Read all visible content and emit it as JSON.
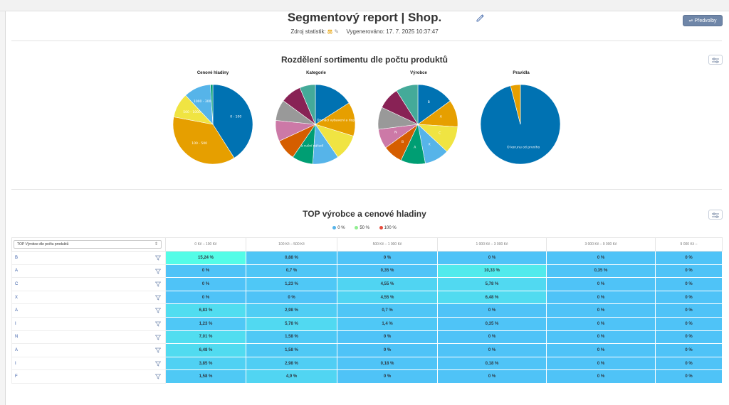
{
  "header": {
    "title": "Segmentový report | Shop.",
    "source_label": "Zdroj statistik:",
    "generated": "Vygenerováno: 17. 7. 2025 10:37:47",
    "preset_button": "Předvolby",
    "preset_icon": "sliders-icon",
    "edit_icon": "pencil-icon"
  },
  "assortment": {
    "title": "Rozdělení sortimentu dle počtu produktů",
    "pies": [
      {
        "title": "Cenové hladiny",
        "slices": [
          {
            "label": "0 - 100",
            "value": 41,
            "color": "#0072b2"
          },
          {
            "label": "100 - 500",
            "value": 37,
            "color": "#e69f00"
          },
          {
            "label": "500 - 1000",
            "value": 10,
            "color": "#f0e442"
          },
          {
            "label": "1000 - 3000",
            "value": 11,
            "color": "#56b4e9"
          },
          {
            "label": "",
            "value": 1,
            "color": "#009e73"
          }
        ]
      },
      {
        "title": "Kategorie",
        "slices": [
          {
            "label": "",
            "value": 15,
            "color": "#0072b2"
          },
          {
            "label": "Domácí vybavení a doplňky",
            "value": 13,
            "color": "#e69f00"
          },
          {
            "label": "",
            "value": 10,
            "color": "#f0e442"
          },
          {
            "label": "",
            "value": 10,
            "color": "#56b4e9"
          },
          {
            "label": "Dílna a ruční nářadí",
            "value": 8,
            "color": "#009e73"
          },
          {
            "label": "",
            "value": 8,
            "color": "#d55e00"
          },
          {
            "label": "",
            "value": 8,
            "color": "#cc79a7"
          },
          {
            "label": "",
            "value": 8,
            "color": "#999999"
          },
          {
            "label": "",
            "value": 8,
            "color": "#882255"
          },
          {
            "label": "",
            "value": 6,
            "color": "#44aa99"
          }
        ]
      },
      {
        "title": "Výrobce",
        "slices": [
          {
            "label": "B",
            "value": 15,
            "color": "#0072b2"
          },
          {
            "label": "A",
            "value": 11,
            "color": "#e69f00"
          },
          {
            "label": "C",
            "value": 11,
            "color": "#f0e442"
          },
          {
            "label": "X",
            "value": 10,
            "color": "#56b4e9"
          },
          {
            "label": "A",
            "value": 10,
            "color": "#009e73"
          },
          {
            "label": "B",
            "value": 8,
            "color": "#d55e00"
          },
          {
            "label": "N",
            "value": 8,
            "color": "#cc79a7"
          },
          {
            "label": "",
            "value": 9,
            "color": "#999999"
          },
          {
            "label": "",
            "value": 9,
            "color": "#882255"
          },
          {
            "label": "",
            "value": 9,
            "color": "#44aa99"
          }
        ]
      },
      {
        "title": "Pravidla",
        "slices": [
          {
            "label": "O korunu od prvního",
            "value": 96,
            "color": "#0072b2"
          },
          {
            "label": "",
            "value": 4,
            "color": "#e69f00"
          }
        ]
      }
    ]
  },
  "top": {
    "title": "TOP výrobce a cenové hladiny",
    "legend": [
      {
        "label": "0 %",
        "color": "#56b4e9"
      },
      {
        "label": "50 %",
        "color": "#90ee90"
      },
      {
        "label": "100 %",
        "color": "#e74c3c"
      }
    ],
    "select_label": "TOP Výrobce dle počtu produktů",
    "columns": [
      "0 Kč – 100 Kč",
      "100 Kč – 500 Kč",
      "500 Kč – 1 000 Kč",
      "1 000 Kč – 3 000 Kč",
      "3 000 Kč – 9 000 Kč",
      "9 000 Kč –"
    ],
    "rows": [
      {
        "label": "B",
        "values": [
          "15,24 %",
          "0,88 %",
          "0 %",
          "0 %",
          "0 %",
          "0 %"
        ]
      },
      {
        "label": "A",
        "values": [
          "0 %",
          "0,7 %",
          "0,35 %",
          "10,33 %",
          "0,35 %",
          "0 %"
        ]
      },
      {
        "label": "C",
        "values": [
          "0 %",
          "1,23 %",
          "4,55 %",
          "5,78 %",
          "0 %",
          "0 %"
        ]
      },
      {
        "label": "X",
        "values": [
          "0 %",
          "0 %",
          "4,55 %",
          "6,48 %",
          "0 %",
          "0 %"
        ]
      },
      {
        "label": "A",
        "values": [
          "6,83 %",
          "2,98 %",
          "0,7 %",
          "0 %",
          "0 %",
          "0 %"
        ]
      },
      {
        "label": "I",
        "values": [
          "1,23 %",
          "5,78 %",
          "1,4 %",
          "0,35 %",
          "0 %",
          "0 %"
        ]
      },
      {
        "label": "N",
        "values": [
          "7,01 %",
          "1,58 %",
          "0 %",
          "0 %",
          "0 %",
          "0 %"
        ]
      },
      {
        "label": "A",
        "values": [
          "6,48 %",
          "1,58 %",
          "0 %",
          "0 %",
          "0 %",
          "0 %"
        ]
      },
      {
        "label": "I",
        "values": [
          "3,85 %",
          "2,98 %",
          "0,18 %",
          "0,18 %",
          "0 %",
          "0 %"
        ]
      },
      {
        "label": "F",
        "values": [
          "1,58 %",
          "4,9 %",
          "0 %",
          "0 %",
          "0 %",
          "0 %"
        ]
      }
    ]
  }
}
